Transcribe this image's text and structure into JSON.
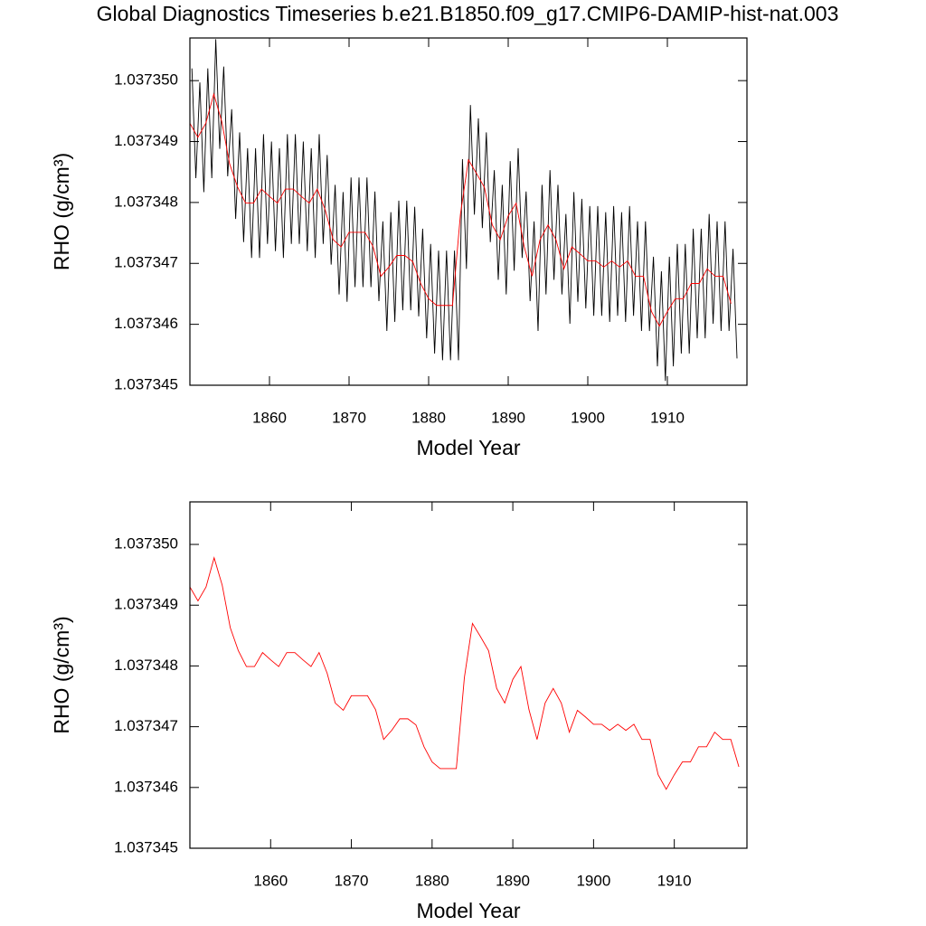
{
  "chart_data": [
    {
      "type": "line",
      "title": "Global Diagnostics Timeseries b.e21.B1850.f09_g17.CMIP6-DAMIP-hist-nat.003",
      "x_label": "Model Year",
      "y_label": "RHO (g/cm³)",
      "xlim": [
        1850,
        1920
      ],
      "xticks": [
        1860,
        1870,
        1880,
        1890,
        1900,
        1910
      ],
      "ylim": [
        1.037345,
        1.0373507
      ],
      "yticks": [
        1.037345,
        1.037346,
        1.037347,
        1.037348,
        1.037349,
        {
          "value": 1.03735,
          "label": "1.037350"
        }
      ],
      "series": [
        {
          "color": "#000000",
          "x": [
            1850.25,
            1850.75,
            1851.25,
            1851.75,
            1852.25,
            1852.75,
            1853.25,
            1853.75,
            1854.25,
            1854.75,
            1855.25,
            1855.75,
            1856.25,
            1856.75,
            1857.25,
            1857.75,
            1858.25,
            1858.75,
            1859.25,
            1859.75,
            1860.25,
            1860.75,
            1861.25,
            1861.75,
            1862.25,
            1862.75,
            1863.25,
            1863.75,
            1864.25,
            1864.75,
            1865.25,
            1865.75,
            1866.25,
            1866.75,
            1867.25,
            1867.75,
            1868.25,
            1868.75,
            1869.25,
            1869.75,
            1870.25,
            1870.75,
            1871.25,
            1871.75,
            1872.25,
            1872.75,
            1873.25,
            1873.75,
            1874.25,
            1874.75,
            1875.25,
            1875.75,
            1876.25,
            1876.75,
            1877.25,
            1877.75,
            1878.25,
            1878.75,
            1879.25,
            1879.75,
            1880.25,
            1880.75,
            1881.25,
            1881.75,
            1882.25,
            1882.75,
            1883.25,
            1883.75,
            1884.25,
            1884.75,
            1885.25,
            1885.75,
            1886.25,
            1886.75,
            1887.25,
            1887.75,
            1888.25,
            1888.75,
            1889.25,
            1889.75,
            1890.25,
            1890.75,
            1891.25,
            1891.75,
            1892.25,
            1892.75,
            1893.25,
            1893.75,
            1894.25,
            1894.75,
            1895.25,
            1895.75,
            1896.25,
            1896.75,
            1897.25,
            1897.75,
            1898.25,
            1898.75,
            1899.25,
            1899.75,
            1900.25,
            1900.75,
            1901.25,
            1901.75,
            1902.25,
            1902.75,
            1903.25,
            1903.75,
            1904.25,
            1904.75,
            1905.25,
            1905.75,
            1906.25,
            1906.75,
            1907.25,
            1907.75,
            1908.25,
            1908.75,
            1909.25,
            1909.75,
            1910.25,
            1910.75,
            1911.25,
            1911.75,
            1912.25,
            1912.75,
            1913.25,
            1913.75,
            1914.25,
            1914.75,
            1915.25,
            1915.75,
            1916.25,
            1916.75,
            1917.25,
            1917.75,
            1918.25,
            1918.75
          ],
          "values": [
            1.0373502,
            1.0373484,
            1.03734997,
            1.03734817,
            1.0373502,
            1.0373484,
            1.03735068,
            1.03734888,
            1.03735023,
            1.03734843,
            1.03734953,
            1.03734773,
            1.03734915,
            1.03734735,
            1.03734889,
            1.03734709,
            1.03734889,
            1.03734709,
            1.03734912,
            1.03734732,
            1.037349,
            1.0373472,
            1.03734889,
            1.03734709,
            1.03734912,
            1.03734732,
            1.03734912,
            1.03734732,
            1.037349,
            1.0373472,
            1.03734889,
            1.03734709,
            1.03734912,
            1.03734732,
            1.03734878,
            1.03734698,
            1.03734829,
            1.03734649,
            1.03734817,
            1.03734637,
            1.03734841,
            1.03734661,
            1.03734841,
            1.03734661,
            1.03734841,
            1.03734661,
            1.03734818,
            1.03734638,
            1.03734769,
            1.03734589,
            1.03734784,
            1.03734604,
            1.03734803,
            1.03734623,
            1.03734803,
            1.03734623,
            1.03734793,
            1.03734613,
            1.03734757,
            1.03734577,
            1.03734732,
            1.03734552,
            1.03734721,
            1.03734541,
            1.03734721,
            1.03734541,
            1.03734721,
            1.03734541,
            1.03734871,
            1.03734691,
            1.0373496,
            1.0373478,
            1.03734938,
            1.03734758,
            1.03734915,
            1.03734735,
            1.03734853,
            1.03734673,
            1.03734829,
            1.03734649,
            1.03734868,
            1.03734688,
            1.03734889,
            1.03734709,
            1.03734818,
            1.03734638,
            1.03734769,
            1.03734589,
            1.03734829,
            1.03734649,
            1.03734853,
            1.03734673,
            1.03734829,
            1.03734649,
            1.03734781,
            1.03734601,
            1.03734817,
            1.03734637,
            1.03734806,
            1.03734626,
            1.03734794,
            1.03734614,
            1.03734794,
            1.03734614,
            1.03734784,
            1.03734604,
            1.03734794,
            1.03734614,
            1.03734784,
            1.03734604,
            1.03734794,
            1.03734614,
            1.03734769,
            1.03734589,
            1.03734769,
            1.03734589,
            1.03734711,
            1.03734531,
            1.03734687,
            1.03734507,
            1.03734711,
            1.03734531,
            1.03734732,
            1.03734552,
            1.03734732,
            1.03734552,
            1.03734757,
            1.03734577,
            1.03734757,
            1.03734577,
            1.03734781,
            1.03734601,
            1.03734769,
            1.03734589,
            1.03734769,
            1.03734589,
            1.03734724,
            1.03734544
          ]
        },
        {
          "color": "#ff0000",
          "x": [
            1850,
            1851,
            1852,
            1853,
            1854,
            1855,
            1856,
            1857,
            1858,
            1859,
            1860,
            1861,
            1862,
            1863,
            1864,
            1865,
            1866,
            1867,
            1868,
            1869,
            1870,
            1871,
            1872,
            1873,
            1874,
            1875,
            1876,
            1877,
            1878,
            1879,
            1880,
            1881,
            1882,
            1883,
            1884,
            1885,
            1886,
            1887,
            1888,
            1889,
            1890,
            1891,
            1892,
            1893,
            1894,
            1895,
            1896,
            1897,
            1898,
            1899,
            1900,
            1901,
            1902,
            1903,
            1904,
            1905,
            1906,
            1907,
            1908,
            1909,
            1910,
            1911,
            1912,
            1913,
            1914,
            1915,
            1916,
            1917,
            1918
          ],
          "values": [
            1.0373493,
            1.03734907,
            1.0373493,
            1.03734978,
            1.03734933,
            1.03734863,
            1.03734825,
            1.03734799,
            1.03734799,
            1.03734822,
            1.0373481,
            1.03734799,
            1.03734822,
            1.03734822,
            1.0373481,
            1.03734799,
            1.03734822,
            1.03734788,
            1.03734739,
            1.03734727,
            1.03734751,
            1.03734751,
            1.03734751,
            1.03734728,
            1.03734679,
            1.03734694,
            1.03734713,
            1.03734713,
            1.03734703,
            1.03734667,
            1.03734642,
            1.03734631,
            1.03734631,
            1.03734631,
            1.03734781,
            1.0373487,
            1.03734848,
            1.03734825,
            1.03734763,
            1.03734739,
            1.03734778,
            1.03734799,
            1.03734728,
            1.03734679,
            1.03734739,
            1.03734763,
            1.03734739,
            1.03734691,
            1.03734727,
            1.03734716,
            1.03734704,
            1.03734704,
            1.03734694,
            1.03734704,
            1.03734694,
            1.03734704,
            1.03734679,
            1.03734679,
            1.03734621,
            1.03734597,
            1.03734621,
            1.03734642,
            1.03734642,
            1.03734667,
            1.03734667,
            1.03734691,
            1.03734679,
            1.03734679,
            1.03734634
          ]
        }
      ]
    },
    {
      "type": "line",
      "x_label": "Model Year",
      "y_label": "RHO (g/cm³)",
      "xlim": [
        1850,
        1919
      ],
      "xticks": [
        1860,
        1870,
        1880,
        1890,
        1900,
        1910
      ],
      "ylim": [
        1.037345,
        1.0373507
      ],
      "yticks": [
        1.037345,
        1.037346,
        1.037347,
        1.037348,
        1.037349,
        {
          "value": 1.03735,
          "label": "1.037350"
        }
      ],
      "series": [
        {
          "color": "#ff0000",
          "x": [
            1850,
            1851,
            1852,
            1853,
            1854,
            1855,
            1856,
            1857,
            1858,
            1859,
            1860,
            1861,
            1862,
            1863,
            1864,
            1865,
            1866,
            1867,
            1868,
            1869,
            1870,
            1871,
            1872,
            1873,
            1874,
            1875,
            1876,
            1877,
            1878,
            1879,
            1880,
            1881,
            1882,
            1883,
            1884,
            1885,
            1886,
            1887,
            1888,
            1889,
            1890,
            1891,
            1892,
            1893,
            1894,
            1895,
            1896,
            1897,
            1898,
            1899,
            1900,
            1901,
            1902,
            1903,
            1904,
            1905,
            1906,
            1907,
            1908,
            1909,
            1910,
            1911,
            1912,
            1913,
            1914,
            1915,
            1916,
            1917,
            1918
          ],
          "values": [
            1.0373493,
            1.03734907,
            1.0373493,
            1.03734978,
            1.03734933,
            1.03734863,
            1.03734825,
            1.03734799,
            1.03734799,
            1.03734822,
            1.0373481,
            1.03734799,
            1.03734822,
            1.03734822,
            1.0373481,
            1.03734799,
            1.03734822,
            1.03734788,
            1.03734739,
            1.03734727,
            1.03734751,
            1.03734751,
            1.03734751,
            1.03734728,
            1.03734679,
            1.03734694,
            1.03734713,
            1.03734713,
            1.03734703,
            1.03734667,
            1.03734642,
            1.03734631,
            1.03734631,
            1.03734631,
            1.03734781,
            1.0373487,
            1.03734848,
            1.03734825,
            1.03734763,
            1.03734739,
            1.03734778,
            1.03734799,
            1.03734728,
            1.03734679,
            1.03734739,
            1.03734763,
            1.03734739,
            1.03734691,
            1.03734727,
            1.03734716,
            1.03734704,
            1.03734704,
            1.03734694,
            1.03734704,
            1.03734694,
            1.03734704,
            1.03734679,
            1.03734679,
            1.03734621,
            1.03734597,
            1.03734621,
            1.03734642,
            1.03734642,
            1.03734667,
            1.03734667,
            1.03734691,
            1.03734679,
            1.03734679,
            1.03734634
          ]
        }
      ]
    }
  ]
}
